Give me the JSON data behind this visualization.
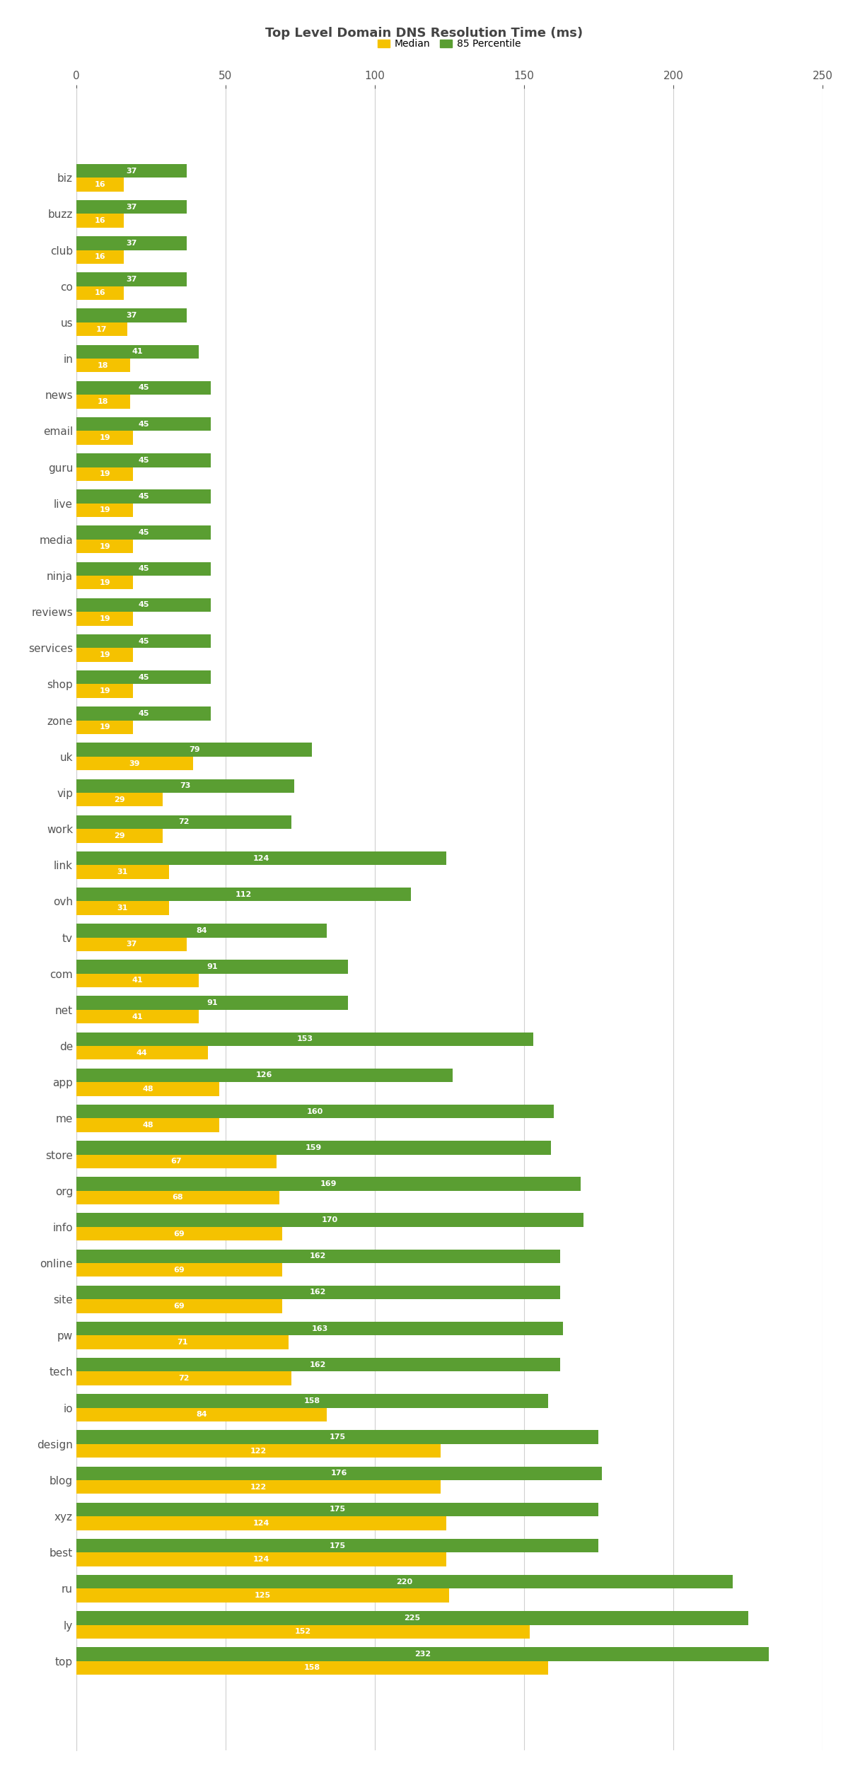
{
  "title": "Top Level Domain DNS Resolution Time (ms)",
  "categories": [
    "biz",
    "buzz",
    "club",
    "co",
    "us",
    "in",
    "news",
    "email",
    "guru",
    "live",
    "media",
    "ninja",
    "reviews",
    "services",
    "shop",
    "zone",
    "uk",
    "vip",
    "work",
    "link",
    "ovh",
    "tv",
    "com",
    "net",
    "de",
    "app",
    "me",
    "store",
    "org",
    "info",
    "online",
    "site",
    "pw",
    "tech",
    "io",
    "design",
    "blog",
    "xyz",
    "best",
    "ru",
    "ly",
    "top"
  ],
  "median": [
    16,
    16,
    16,
    16,
    17,
    18,
    18,
    19,
    19,
    19,
    19,
    19,
    19,
    19,
    19,
    19,
    39,
    29,
    29,
    31,
    31,
    37,
    41,
    41,
    44,
    48,
    48,
    67,
    68,
    69,
    69,
    69,
    71,
    72,
    84,
    122,
    122,
    124,
    124,
    125,
    152,
    158
  ],
  "p85": [
    37,
    37,
    37,
    37,
    37,
    41,
    45,
    45,
    45,
    45,
    45,
    45,
    45,
    45,
    45,
    45,
    79,
    73,
    72,
    124,
    112,
    84,
    91,
    91,
    153,
    126,
    160,
    159,
    169,
    170,
    162,
    162,
    163,
    162,
    158,
    175,
    176,
    175,
    175,
    220,
    225,
    232
  ],
  "median_color": "#f5c200",
  "p85_color": "#5a9e32",
  "bar_height": 0.38,
  "xlim": [
    0,
    250
  ],
  "xticks": [
    0,
    50,
    100,
    150,
    200,
    250
  ],
  "legend_labels": [
    "Median",
    "85 Percentile"
  ],
  "background_color": "#ffffff",
  "grid_color": "#d0d0d0",
  "title_fontsize": 13,
  "label_fontsize": 11,
  "bar_label_fontsize": 8,
  "ylabel_color": "#555555"
}
